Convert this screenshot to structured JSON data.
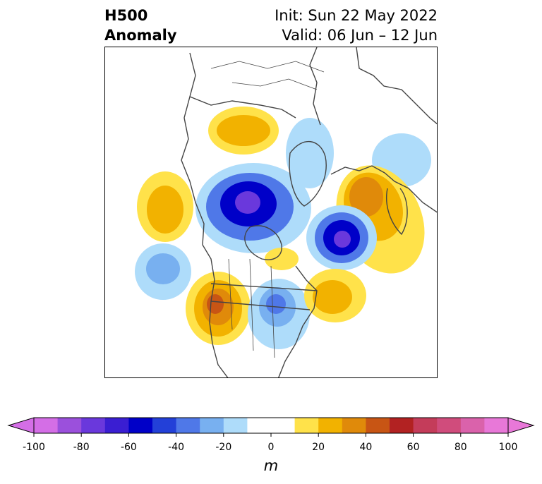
{
  "header": {
    "title_line1": "H500",
    "title_line2": "Anomaly",
    "init_text": "Init: Sun 22 May 2022",
    "valid_text": "Valid: 06 Jun – 12 Jun"
  },
  "colorbar": {
    "unit": "m",
    "min": -100,
    "max": 100,
    "tick_labels": [
      "-100",
      "-80",
      "-60",
      "-40",
      "-20",
      "0",
      "20",
      "40",
      "60",
      "80",
      "100"
    ],
    "colors": [
      "#d46ee6",
      "#9b50dc",
      "#6a38dc",
      "#3a1ed2",
      "#0000c8",
      "#2340d8",
      "#4f78e8",
      "#78b0f0",
      "#aedcfa",
      "#ffffff",
      "#ffffff",
      "#ffe24a",
      "#f2b200",
      "#e08a0a",
      "#c85514",
      "#b22222",
      "#c43c5a",
      "#d04c7c",
      "#da62ab",
      "#e878d8"
    ],
    "extend_low_color": "#d46ee6",
    "extend_high_color": "#e878d8"
  },
  "map": {
    "region": "Northern Hemisphere polar stereographic",
    "anomalies": [
      {
        "label": "Central-northern Canada / Arctic low",
        "value": -70
      },
      {
        "label": "North Atlantic low (south of Greenland)",
        "value": -70
      },
      {
        "label": "Eastern United States trough",
        "value": -35
      },
      {
        "label": "Eastern Pacific trough",
        "value": -25
      },
      {
        "label": "Eastern Siberia trough",
        "value": -20
      },
      {
        "label": "Alaska / Yukon ridge",
        "value": 25
      },
      {
        "label": "Western United States ridge",
        "value": 55
      },
      {
        "label": "Western Atlantic ridge",
        "value": 35
      },
      {
        "label": "Scandinavia / Northwest Europe ridge",
        "value": 45
      },
      {
        "label": "Northeast Pacific ridge",
        "value": 30
      }
    ]
  }
}
